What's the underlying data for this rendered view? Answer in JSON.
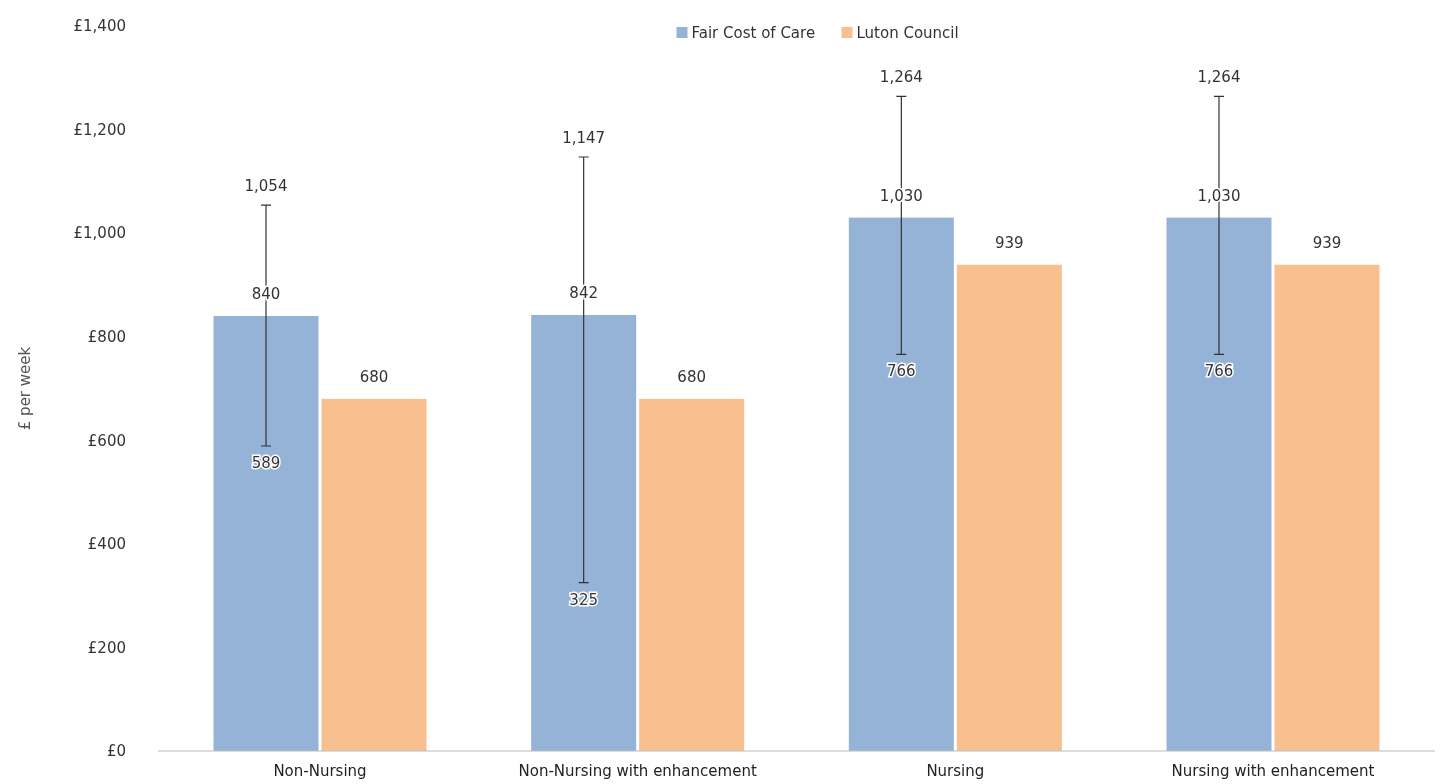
{
  "chart_data": {
    "type": "bar",
    "ylabel": "£ per week",
    "categories": [
      "Non-Nursing",
      "Non-Nursing with enhancement",
      "Nursing",
      "Nursing with enhancement"
    ],
    "series": [
      {
        "name": "Fair Cost of Care",
        "color": "#95b3d7",
        "values": [
          840,
          842,
          1030,
          1030
        ],
        "value_labels": [
          "840",
          "842",
          "1,030",
          "1,030"
        ],
        "errors": [
          [
            589,
            1054
          ],
          [
            325,
            1147
          ],
          [
            766,
            1264
          ],
          [
            766,
            1264
          ]
        ]
      },
      {
        "name": "Luton Council",
        "color": "#f8bf8f",
        "values": [
          680,
          680,
          939,
          939
        ],
        "value_labels": [
          "680",
          "680",
          "939",
          "939"
        ]
      }
    ],
    "ylim": [
      0,
      1400
    ],
    "yticks": [
      {
        "value": 0,
        "label": "£0"
      },
      {
        "value": 200,
        "label": "£200"
      },
      {
        "value": 400,
        "label": "£400"
      },
      {
        "value": 600,
        "label": "£600"
      },
      {
        "value": 800,
        "label": "£800"
      },
      {
        "value": 1000,
        "label": "£1,000"
      },
      {
        "value": 1200,
        "label": "£1,200"
      },
      {
        "value": 1400,
        "label": "£1,400"
      }
    ],
    "annotations": [
      "1,054",
      {
        "text": "589",
        "x": "Non-Nursing",
        "y": 589
      },
      "1,147",
      {
        "text": "325",
        "x": "Non-Nursing with enhancement",
        "y": 325
      },
      "1,264",
      {
        "text": "766",
        "x": "Nursing",
        "y": 766
      },
      "1,264",
      {
        "text": "766",
        "x": "Nursing with enhancement",
        "y": 766
      }
    ],
    "legend": "top",
    "grid": false
  }
}
